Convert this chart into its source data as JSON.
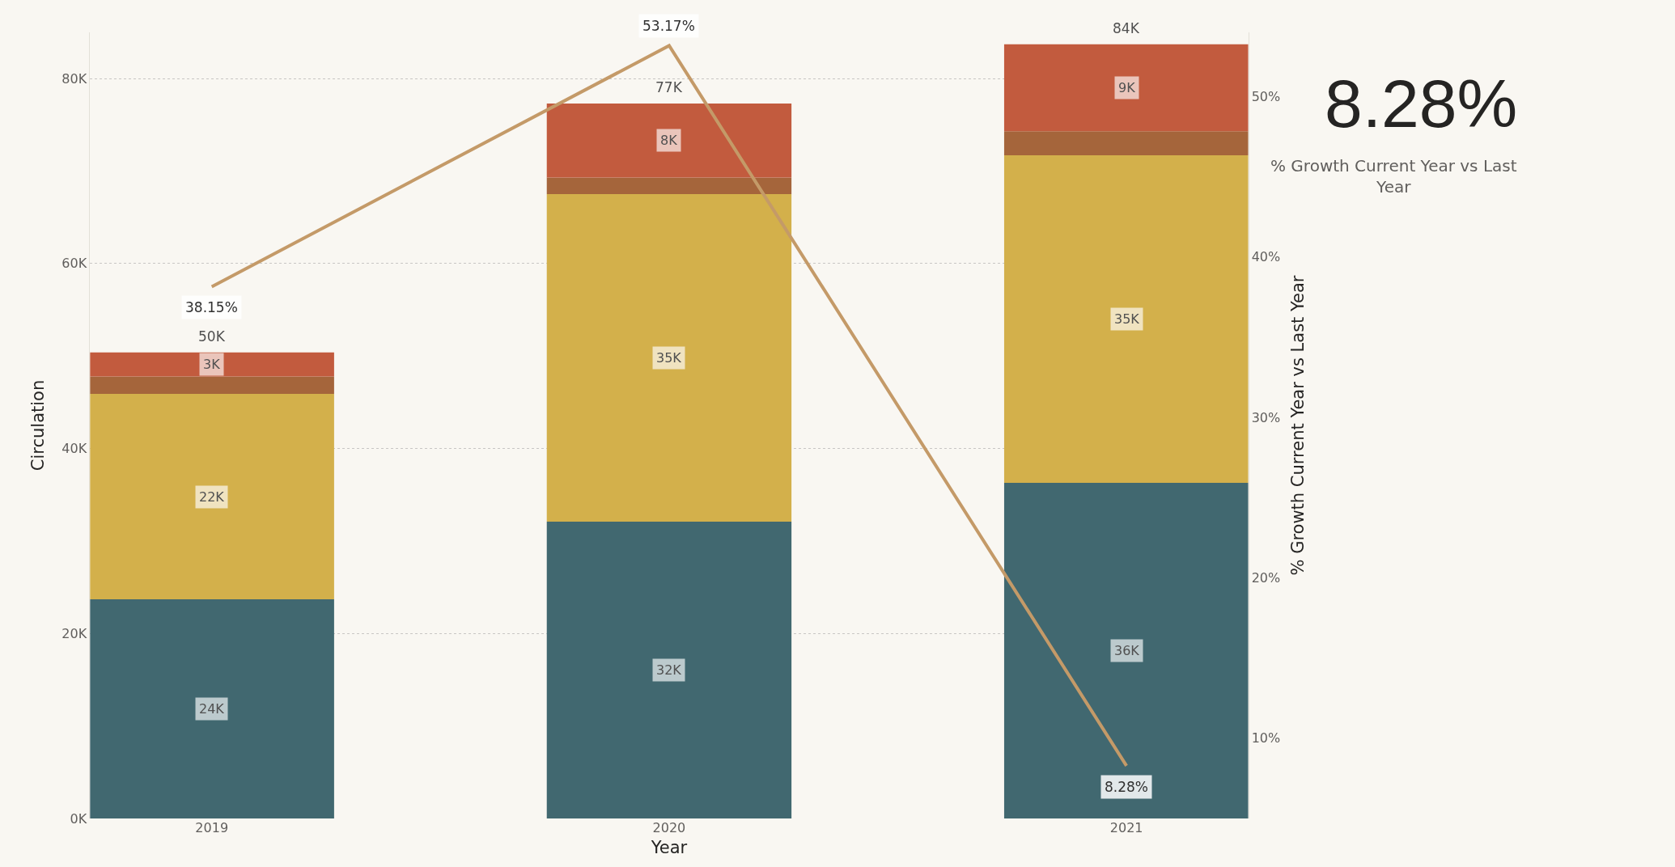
{
  "chart_data": [
    {
      "type": "bar",
      "xlabel": "Year",
      "ylabel": "Circulation",
      "y2label": "% Growth Current Year vs Last Year",
      "categories": [
        "2019",
        "2020",
        "2021"
      ],
      "stacked": true,
      "series": [
        {
          "color": "#416870",
          "values": [
            23700,
            32100,
            36300
          ],
          "value_labels": [
            "24K",
            "32K",
            "36K"
          ]
        },
        {
          "color": "#d3b04b",
          "values": [
            22200,
            35400,
            35400
          ],
          "value_labels": [
            "22K",
            "35K",
            "35K"
          ]
        },
        {
          "color": "#a5653b",
          "values": [
            1900,
            1800,
            2600
          ],
          "value_labels": [
            null,
            null,
            null
          ]
        },
        {
          "color": "#c25b3e",
          "values": [
            2600,
            8000,
            9400
          ],
          "value_labels": [
            "3K",
            "8K",
            "9K"
          ]
        },
        {
          "type": "line",
          "axis": "y2",
          "color": "#c49a68",
          "values": [
            38.15,
            53.17,
            8.28
          ],
          "value_labels": [
            "38.15%",
            "53.17%",
            "8.28%"
          ],
          "marker": "none",
          "line_style": "solid"
        }
      ],
      "totals": [
        "50K",
        "77K",
        "84K"
      ],
      "ylim": [
        0,
        85000
      ],
      "yticks": [
        {
          "value": 0,
          "label": "0K"
        },
        {
          "value": 20000,
          "label": "20K"
        },
        {
          "value": 40000,
          "label": "40K"
        },
        {
          "value": 60000,
          "label": "60K"
        },
        {
          "value": 80000,
          "label": "80K"
        }
      ],
      "y2lim": [
        5,
        54
      ],
      "y2ticks": [
        {
          "value": 10,
          "label": "10%"
        },
        {
          "value": 20,
          "label": "20%"
        },
        {
          "value": 30,
          "label": "30%"
        },
        {
          "value": 40,
          "label": "40%"
        },
        {
          "value": 50,
          "label": "50%"
        }
      ],
      "grid": "y",
      "legend": false
    },
    {
      "type": "other",
      "title": "8.28%",
      "subtitle": "% Growth Current Year vs Last Year"
    }
  ]
}
